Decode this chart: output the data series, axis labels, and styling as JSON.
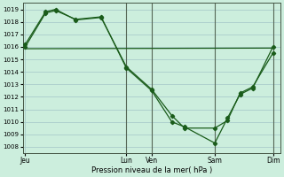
{
  "xlabel": "Pression niveau de la mer( hPa )",
  "bg_color": "#cceedd",
  "grid_color": "#aacccc",
  "line_color": "#1a5c1a",
  "vline_color": "#556655",
  "ylim": [
    1007.5,
    1019.5
  ],
  "yticks": [
    1008,
    1009,
    1010,
    1011,
    1012,
    1013,
    1014,
    1015,
    1016,
    1017,
    1018,
    1019
  ],
  "xlim": [
    -0.1,
    10.1
  ],
  "day_positions": [
    0.0,
    4.0,
    5.0,
    7.5,
    9.8
  ],
  "day_labels": [
    "Jeu",
    "Lun",
    "Ven",
    "Sam",
    "Dim"
  ],
  "vlines": [
    4.0,
    5.0,
    7.5,
    9.8
  ],
  "series1": {
    "x": [
      0.0,
      0.8,
      1.2,
      2.0,
      3.0,
      4.0,
      5.0,
      5.8,
      6.3,
      7.5,
      8.0,
      8.5,
      9.0,
      9.8
    ],
    "y": [
      1016.0,
      1018.7,
      1018.9,
      1018.2,
      1018.4,
      1014.3,
      1012.5,
      1010.0,
      1009.6,
      1008.3,
      1010.3,
      1012.2,
      1012.7,
      1016.0
    ]
  },
  "series2": {
    "x": [
      0.0,
      0.8,
      1.2,
      2.0,
      3.0,
      4.0,
      5.0,
      5.8,
      6.3,
      7.5,
      8.0,
      8.5,
      9.0,
      9.8
    ],
    "y": [
      1016.2,
      1018.8,
      1019.0,
      1018.15,
      1018.35,
      1014.4,
      1012.6,
      1010.5,
      1009.5,
      1009.5,
      1010.1,
      1012.3,
      1012.8,
      1015.5
    ]
  },
  "series3": {
    "x": [
      0.0,
      9.8
    ],
    "y": [
      1015.85,
      1015.9
    ]
  }
}
